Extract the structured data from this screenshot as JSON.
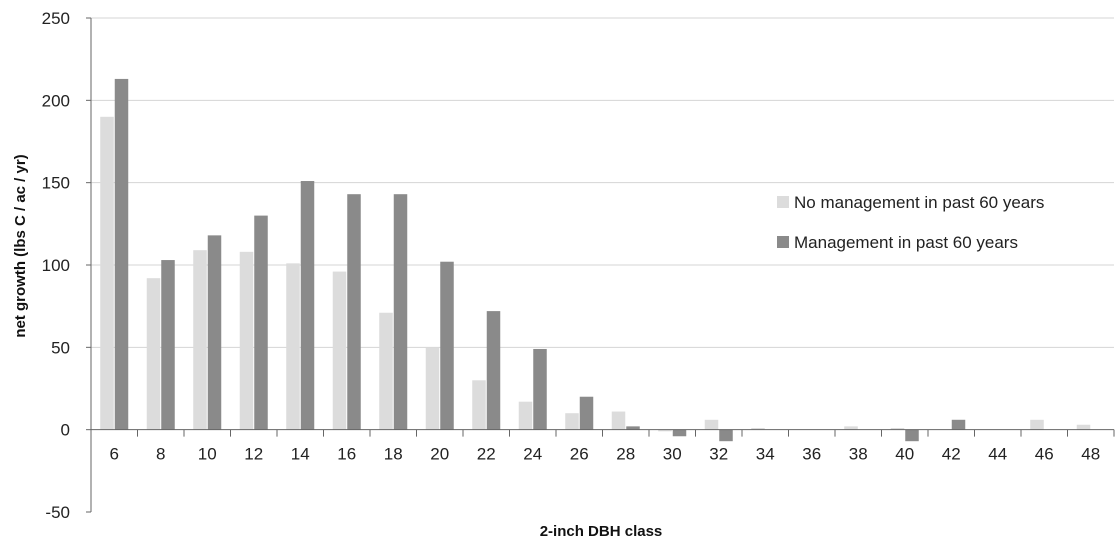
{
  "chart_data": {
    "type": "bar",
    "title": "",
    "xlabel": "2-inch DBH class",
    "ylabel": "net growth (lbs C / ac / yr)",
    "ylim": [
      -50,
      250
    ],
    "yticks": [
      -50,
      0,
      50,
      100,
      150,
      200,
      250
    ],
    "grid": true,
    "legend_position": "right",
    "categories": [
      "6",
      "8",
      "10",
      "12",
      "14",
      "16",
      "18",
      "20",
      "22",
      "24",
      "26",
      "28",
      "30",
      "32",
      "34",
      "36",
      "38",
      "40",
      "42",
      "44",
      "46",
      "48"
    ],
    "series": [
      {
        "name": "No management in past 60 years",
        "color": "#dcdcdc",
        "values": [
          190,
          92,
          109,
          108,
          101,
          96,
          71,
          50,
          30,
          17,
          10,
          11,
          -1,
          6,
          1,
          0,
          2,
          1,
          0,
          0,
          6,
          3
        ]
      },
      {
        "name": "Management in past 60 years",
        "color": "#8a8a8a",
        "values": [
          213,
          103,
          118,
          130,
          151,
          143,
          143,
          102,
          72,
          49,
          20,
          2,
          -4,
          -7,
          0,
          0,
          0,
          -7,
          6,
          0,
          0,
          0
        ]
      }
    ]
  }
}
